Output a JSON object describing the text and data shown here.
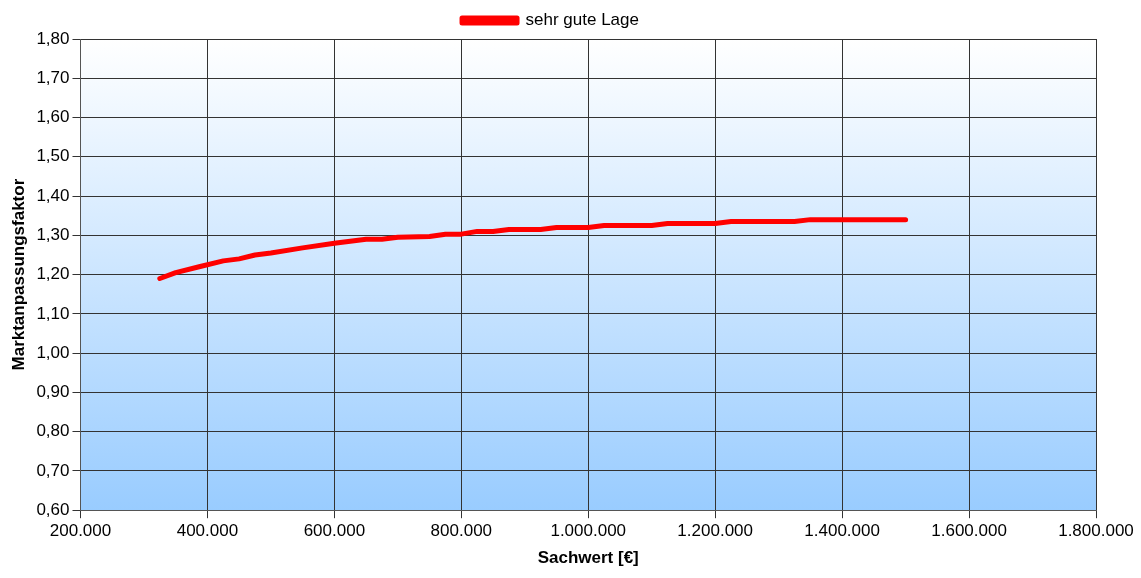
{
  "chart_data": {
    "type": "line",
    "xlabel": "Sachwert [€]",
    "ylabel": "Marktanpassungsfaktor",
    "legend": "top",
    "x": [
      325000,
      350000,
      387000,
      425000,
      450000,
      475000,
      500000,
      550000,
      600000,
      650000,
      675000,
      700000,
      750000,
      775000,
      800000,
      825000,
      850000,
      875000,
      925000,
      950000,
      1000000,
      1025000,
      1100000,
      1125000,
      1200000,
      1225000,
      1325000,
      1350000,
      1500000
    ],
    "series": [
      {
        "name": "sehr gute Lage",
        "color": "#ff0000",
        "values": [
          1.19,
          1.205,
          1.22,
          1.235,
          1.24,
          1.25,
          1.255,
          1.268,
          1.28,
          1.29,
          1.29,
          1.295,
          1.297,
          1.303,
          1.303,
          1.31,
          1.31,
          1.315,
          1.315,
          1.32,
          1.32,
          1.325,
          1.325,
          1.33,
          1.33,
          1.335,
          1.335,
          1.34,
          1.34
        ]
      }
    ],
    "xlim": [
      200000,
      1800000
    ],
    "xticks": [
      {
        "value": 200000,
        "label": "200.000"
      },
      {
        "value": 400000,
        "label": "400.000"
      },
      {
        "value": 600000,
        "label": "600.000"
      },
      {
        "value": 800000,
        "label": "800.000"
      },
      {
        "value": 1000000,
        "label": "1.000.000"
      },
      {
        "value": 1200000,
        "label": "1.200.000"
      },
      {
        "value": 1400000,
        "label": "1.400.000"
      },
      {
        "value": 1600000,
        "label": "1.600.000"
      },
      {
        "value": 1800000,
        "label": "1.800.000"
      }
    ],
    "ylim": [
      0.6,
      1.8
    ],
    "yticks": [
      {
        "value": 0.6,
        "label": "0,60"
      },
      {
        "value": 0.7,
        "label": "0,70"
      },
      {
        "value": 0.8,
        "label": "0,80"
      },
      {
        "value": 0.9,
        "label": "0,90"
      },
      {
        "value": 1.0,
        "label": "1,00"
      },
      {
        "value": 1.1,
        "label": "1,10"
      },
      {
        "value": 1.2,
        "label": "1,20"
      },
      {
        "value": 1.3,
        "label": "1,30"
      },
      {
        "value": 1.4,
        "label": "1,40"
      },
      {
        "value": 1.5,
        "label": "1,50"
      },
      {
        "value": 1.6,
        "label": "1,60"
      },
      {
        "value": 1.7,
        "label": "1,70"
      },
      {
        "value": 1.8,
        "label": "1,80"
      }
    ],
    "grid": true,
    "marker": "none"
  }
}
